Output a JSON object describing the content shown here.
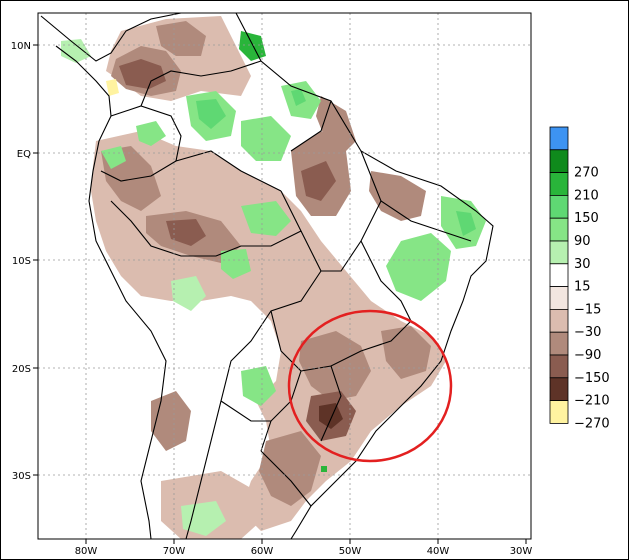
{
  "map": {
    "lat_labels": [
      "10N",
      "EQ",
      "10S",
      "20S",
      "30S"
    ],
    "lon_labels": [
      "80W",
      "70W",
      "60W",
      "50W",
      "40W",
      "30W"
    ],
    "colors": {
      "ocean": "#ffffff",
      "land_neutral": "#ffffff",
      "green_light": "#a9ec9b",
      "green_mid": "#5fd873",
      "green_strong": "#29b53a",
      "green_dark": "#0f8a1c",
      "brown_light": "#dbbcaf",
      "brown_mid": "#b08a7c",
      "brown_dark": "#8a5c50",
      "brown_darkest": "#5e3327",
      "highlight_circle": "#e32020"
    }
  },
  "colorbar": {
    "bins": [
      {
        "label": "",
        "color": "#3d93f2"
      },
      {
        "label": "270",
        "color": "#0f8a1c"
      },
      {
        "label": "210",
        "color": "#29b53a"
      },
      {
        "label": "150",
        "color": "#5fd873"
      },
      {
        "label": "90",
        "color": "#86e586"
      },
      {
        "label": "30",
        "color": "#b6f0b0"
      },
      {
        "label": "15",
        "color": "#ffffff"
      },
      {
        "label": "−15",
        "color": "#f2e6e0"
      },
      {
        "label": "−30",
        "color": "#dbbcaf"
      },
      {
        "label": "−90",
        "color": "#b08a7c"
      },
      {
        "label": "−150",
        "color": "#8a5c50"
      },
      {
        "label": "−210",
        "color": "#5e3327"
      },
      {
        "label": "−270",
        "color": "#fff3a0"
      }
    ]
  }
}
